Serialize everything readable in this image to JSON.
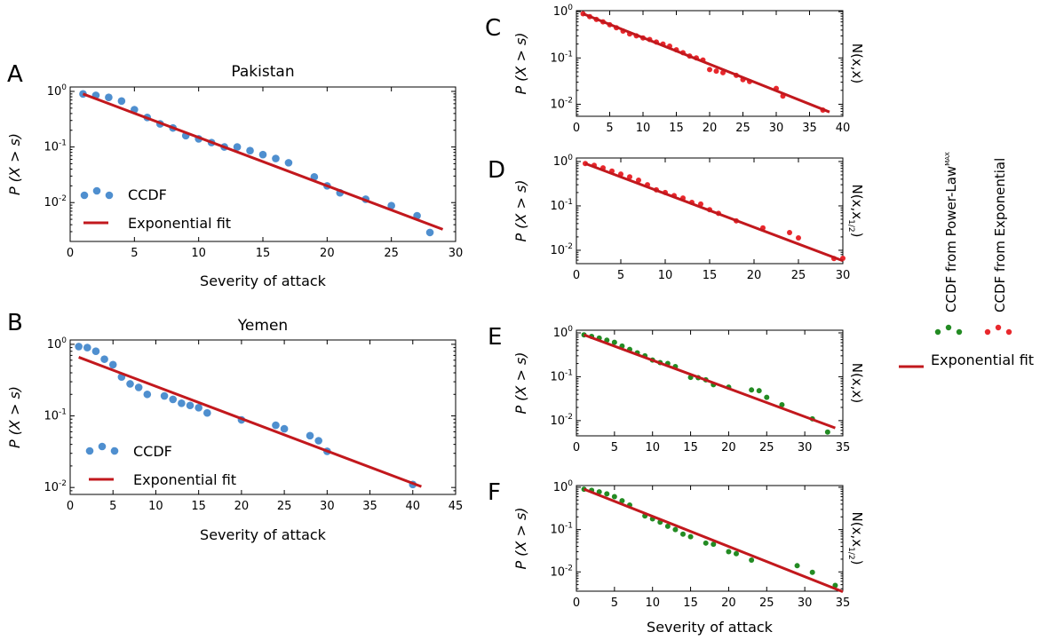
{
  "colors": {
    "ccdf_blue": "#4f8fcf",
    "fit_red": "#c2181d",
    "ccdf_red": "#e8282d",
    "ccdf_green": "#238b23"
  },
  "legend": {
    "ccdf_label": "CCDF",
    "fit_label": "Exponential fit",
    "green_label": "CCDF from Power-Law",
    "green_label_sup": "MAX",
    "red_label": "CCDF from Exponential",
    "right_fit_label": "Exponential fit"
  },
  "chart_data": [
    {
      "panel": "A",
      "type": "scatter",
      "title": "Pakistan",
      "xlabel": "Severity of attack",
      "ylabel": "P (X > s)",
      "side_label": "",
      "xlim": [
        0,
        30
      ],
      "ylim": [
        0.002,
        1.2
      ],
      "yscale": "log",
      "xticks": [
        0,
        5,
        10,
        15,
        20,
        25,
        30
      ],
      "series": [
        {
          "name": "CCDF",
          "color": "ccdf_blue",
          "x": [
            1,
            2,
            3,
            4,
            5,
            6,
            7,
            8,
            9,
            10,
            11,
            12,
            13,
            14,
            15,
            16,
            17,
            19,
            20,
            21,
            23,
            25,
            27,
            28
          ],
          "y": [
            0.9,
            0.85,
            0.78,
            0.67,
            0.47,
            0.34,
            0.26,
            0.22,
            0.16,
            0.14,
            0.12,
            0.1,
            0.1,
            0.086,
            0.073,
            0.062,
            0.052,
            0.029,
            0.02,
            0.015,
            0.0115,
            0.0088,
            0.0058,
            0.0029
          ]
        },
        {
          "name": "Exponential fit",
          "color": "fit_red",
          "line": true,
          "x": [
            1,
            29
          ],
          "y": [
            0.9,
            0.0033
          ]
        }
      ]
    },
    {
      "panel": "B",
      "type": "scatter",
      "title": "Yemen",
      "xlabel": "Severity of attack",
      "ylabel": "P (X > s)",
      "side_label": "",
      "xlim": [
        0,
        45
      ],
      "ylim": [
        0.008,
        1.15
      ],
      "yscale": "log",
      "xticks": [
        0,
        5,
        10,
        15,
        20,
        25,
        30,
        35,
        40,
        45
      ],
      "series": [
        {
          "name": "CCDF",
          "color": "ccdf_blue",
          "x": [
            1,
            2,
            3,
            4,
            5,
            6,
            7,
            8,
            9,
            11,
            12,
            13,
            14,
            15,
            16,
            20,
            24,
            25,
            28,
            29,
            30,
            40
          ],
          "y": [
            0.93,
            0.9,
            0.8,
            0.62,
            0.52,
            0.35,
            0.28,
            0.25,
            0.2,
            0.19,
            0.17,
            0.15,
            0.14,
            0.13,
            0.11,
            0.088,
            0.074,
            0.066,
            0.053,
            0.045,
            0.032,
            0.011
          ]
        },
        {
          "name": "Exponential fit",
          "color": "fit_red",
          "line": true,
          "x": [
            1,
            41
          ],
          "y": [
            0.66,
            0.0103
          ]
        }
      ]
    },
    {
      "panel": "C",
      "type": "scatter",
      "title": "",
      "xlabel": "",
      "ylabel": "P (X > s)",
      "side_label": "N(x,x)",
      "xlim": [
        0,
        40
      ],
      "ylim": [
        0.0055,
        1.05
      ],
      "yscale": "log",
      "xticks": [
        0,
        5,
        10,
        15,
        20,
        25,
        30,
        35,
        40
      ],
      "series": [
        {
          "name": "CCDF from Exponential",
          "color": "ccdf_red",
          "x": [
            1,
            2,
            3,
            4,
            5,
            6,
            7,
            8,
            9,
            10,
            11,
            12,
            13,
            14,
            15,
            16,
            17,
            18,
            19,
            20,
            21,
            22,
            24,
            25,
            26,
            30,
            31,
            37
          ],
          "y": [
            0.9,
            0.78,
            0.68,
            0.6,
            0.52,
            0.45,
            0.38,
            0.33,
            0.3,
            0.27,
            0.25,
            0.22,
            0.2,
            0.18,
            0.15,
            0.13,
            0.11,
            0.1,
            0.09,
            0.056,
            0.052,
            0.048,
            0.042,
            0.034,
            0.031,
            0.022,
            0.015,
            0.0075
          ]
        },
        {
          "name": "Exponential fit",
          "color": "fit_red",
          "line": true,
          "x": [
            1,
            38
          ],
          "y": [
            0.9,
            0.0068
          ]
        }
      ]
    },
    {
      "panel": "D",
      "type": "scatter",
      "title": "",
      "xlabel": "",
      "ylabel": "P (X > s)",
      "side_label": "N(x,x^1/2)",
      "xlim": [
        0,
        30
      ],
      "ylim": [
        0.005,
        1.2
      ],
      "yscale": "log",
      "xticks": [
        0,
        5,
        10,
        15,
        20,
        25,
        30
      ],
      "series": [
        {
          "name": "CCDF from Exponential",
          "color": "ccdf_red",
          "x": [
            1,
            2,
            3,
            4,
            5,
            6,
            7,
            8,
            9,
            10,
            11,
            12,
            13,
            14,
            15,
            16,
            18,
            21,
            24,
            25,
            29,
            30
          ],
          "y": [
            0.9,
            0.82,
            0.72,
            0.61,
            0.52,
            0.45,
            0.38,
            0.3,
            0.23,
            0.2,
            0.17,
            0.15,
            0.12,
            0.11,
            0.082,
            0.068,
            0.046,
            0.032,
            0.025,
            0.019,
            0.0065,
            0.0066
          ]
        },
        {
          "name": "Exponential fit",
          "color": "fit_red",
          "line": true,
          "x": [
            1,
            30
          ],
          "y": [
            0.9,
            0.0058
          ]
        }
      ]
    },
    {
      "panel": "E",
      "type": "scatter",
      "title": "",
      "xlabel": "",
      "ylabel": "P (X > s)",
      "side_label": "N(x,x)",
      "xlim": [
        0,
        35
      ],
      "ylim": [
        0.0045,
        1.15
      ],
      "yscale": "log",
      "xticks": [
        0,
        5,
        10,
        15,
        20,
        25,
        30,
        35
      ],
      "series": [
        {
          "name": "CCDF from Power-Law MAX",
          "color": "ccdf_green",
          "x": [
            1,
            2,
            3,
            4,
            5,
            6,
            7,
            8,
            9,
            10,
            11,
            12,
            13,
            15,
            16,
            17,
            18,
            20,
            23,
            24,
            25,
            27,
            31,
            33
          ],
          "y": [
            0.9,
            0.83,
            0.76,
            0.68,
            0.61,
            0.5,
            0.42,
            0.35,
            0.3,
            0.24,
            0.21,
            0.2,
            0.17,
            0.097,
            0.095,
            0.085,
            0.066,
            0.058,
            0.05,
            0.048,
            0.034,
            0.023,
            0.011,
            0.0055
          ]
        },
        {
          "name": "Exponential fit",
          "color": "fit_red",
          "line": true,
          "x": [
            1,
            34
          ],
          "y": [
            0.9,
            0.0068
          ]
        }
      ]
    },
    {
      "panel": "F",
      "type": "scatter",
      "title": "",
      "xlabel": "Severity of attack",
      "ylabel": "P (X > s)",
      "side_label": "N(x,x^1/2)",
      "xlim": [
        0,
        35
      ],
      "ylim": [
        0.0035,
        1.1
      ],
      "yscale": "log",
      "xticks": [
        0,
        5,
        10,
        15,
        20,
        25,
        30,
        35
      ],
      "series": [
        {
          "name": "CCDF from Power-Law MAX",
          "color": "ccdf_green",
          "x": [
            1,
            2,
            3,
            4,
            5,
            6,
            7,
            9,
            10,
            11,
            12,
            13,
            14,
            15,
            17,
            18,
            20,
            21,
            23,
            29,
            31,
            34
          ],
          "y": [
            0.9,
            0.85,
            0.78,
            0.7,
            0.6,
            0.48,
            0.38,
            0.21,
            0.18,
            0.15,
            0.12,
            0.1,
            0.078,
            0.068,
            0.048,
            0.045,
            0.03,
            0.027,
            0.019,
            0.014,
            0.0098,
            0.0048
          ]
        },
        {
          "name": "Exponential fit",
          "color": "fit_red",
          "line": true,
          "x": [
            1,
            35
          ],
          "y": [
            0.9,
            0.0034
          ]
        }
      ]
    }
  ]
}
